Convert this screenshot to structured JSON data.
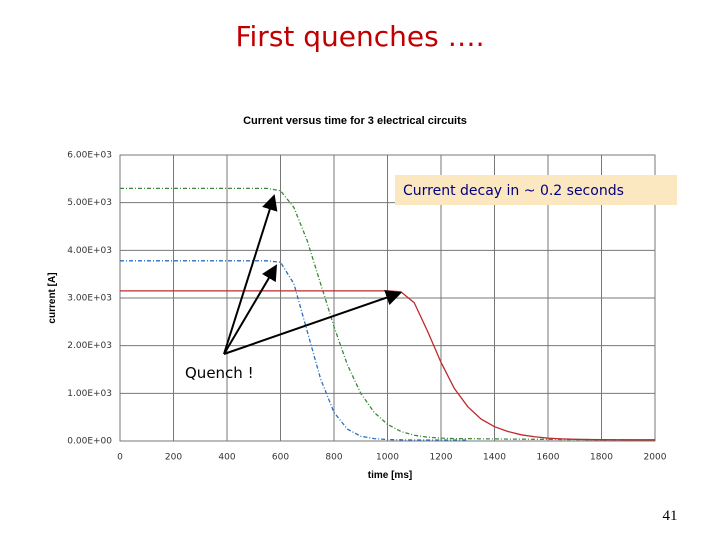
{
  "slide": {
    "title": "First quenches ….",
    "page_number": "41"
  },
  "chart_data": {
    "type": "line",
    "title": "Current versus time for 3 electrical circuits",
    "x_label": "time [ms]",
    "y_label": "current [A]",
    "annotations": [
      "Current decay in ~ 0.2 seconds",
      "Quench !"
    ],
    "x": [
      0,
      50,
      100,
      150,
      200,
      250,
      300,
      350,
      400,
      450,
      500,
      550,
      600,
      650,
      700,
      750,
      800,
      850,
      900,
      950,
      1000,
      1050,
      1100,
      1150,
      1200,
      1250,
      1300,
      1350,
      1400,
      1450,
      1500,
      1550,
      1600,
      1650,
      1700,
      1750,
      1800,
      1850,
      1900,
      1950,
      2000
    ],
    "series": [
      {
        "color": "#3a8a3a",
        "dashed": true,
        "values": [
          5300,
          5300,
          5300,
          5300,
          5300,
          5300,
          5300,
          5300,
          5300,
          5300,
          5300,
          5300,
          5250,
          4900,
          4200,
          3300,
          2400,
          1600,
          1000,
          600,
          350,
          200,
          120,
          80,
          60,
          50,
          50,
          45,
          45,
          40,
          40,
          35,
          35,
          30,
          30,
          30,
          25,
          25,
          25,
          20,
          20
        ]
      },
      {
        "color": "#2a6fc0",
        "dashed": true,
        "values": [
          3780,
          3780,
          3780,
          3780,
          3780,
          3780,
          3780,
          3780,
          3780,
          3780,
          3780,
          3780,
          3750,
          3300,
          2300,
          1300,
          600,
          250,
          100,
          50,
          30,
          25,
          20,
          20,
          20,
          20,
          20,
          null,
          null,
          null,
          null,
          null,
          null,
          null,
          null,
          null,
          null,
          null,
          null,
          null,
          null
        ]
      },
      {
        "color": "#c0282a",
        "dashed": false,
        "values": [
          3150,
          3150,
          3150,
          3150,
          3150,
          3150,
          3150,
          3150,
          3150,
          3150,
          3150,
          3150,
          3150,
          3150,
          3150,
          3150,
          3150,
          3150,
          3150,
          3150,
          3150,
          3130,
          2900,
          2300,
          1650,
          1100,
          720,
          460,
          300,
          200,
          130,
          90,
          60,
          45,
          35,
          30,
          28,
          26,
          25,
          25,
          25
        ]
      }
    ],
    "xlim": [
      0,
      2000
    ],
    "xticks": [
      0,
      200,
      400,
      600,
      800,
      1000,
      1200,
      1400,
      1600,
      1800,
      2000
    ],
    "ylim": [
      0,
      6000
    ],
    "yticks": [
      {
        "value": 0,
        "label": "0.00E+00"
      },
      {
        "value": 1000,
        "label": "1.00E+03"
      },
      {
        "value": 2000,
        "label": "2.00E+03"
      },
      {
        "value": 3000,
        "label": "3.00E+03"
      },
      {
        "value": 4000,
        "label": "4.00E+03"
      },
      {
        "value": 5000,
        "label": "5.00E+03"
      },
      {
        "value": 6000,
        "label": "6.00E+03"
      }
    ],
    "grid": true
  }
}
